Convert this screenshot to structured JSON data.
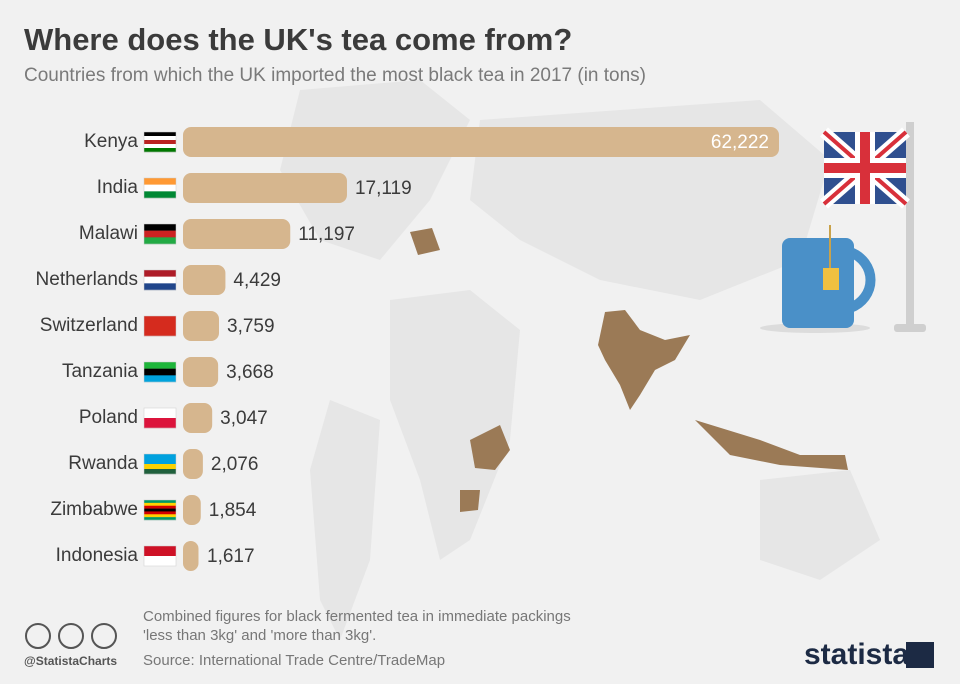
{
  "chart_data": {
    "type": "bar",
    "orientation": "horizontal",
    "title": "Where does the UK's tea come from?",
    "subtitle": "Countries from which the UK imported the most black tea in 2017 (in tons)",
    "categories": [
      "Kenya",
      "India",
      "Malawi",
      "Netherlands",
      "Switzerland",
      "Tanzania",
      "Poland",
      "Rwanda",
      "Zimbabwe",
      "Indonesia"
    ],
    "values": [
      62222,
      17119,
      11197,
      4429,
      3759,
      3668,
      3047,
      2076,
      1854,
      1617
    ],
    "value_labels": [
      "62,222",
      "17,119",
      "11,197",
      "4,429",
      "3,759",
      "3,668",
      "3,047",
      "2,076",
      "1,854",
      "1,617"
    ],
    "color": "#d6b68e",
    "notes": [
      "Combined figures for black fermented tea in immediate packings",
      "'less than 3kg' and 'more than 3kg'."
    ],
    "source": "Source: International Trade Centre/TradeMap",
    "credit": "@StatistaCharts",
    "brand": "statista"
  }
}
